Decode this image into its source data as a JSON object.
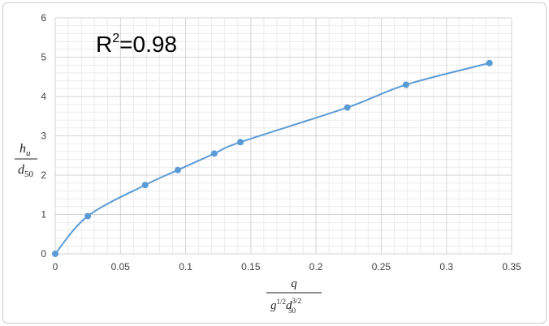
{
  "chart_data": {
    "type": "line",
    "title": "",
    "annotation": {
      "base": "R",
      "sup": "2",
      "rest": "=0.98"
    },
    "xlabel": {
      "num": "q",
      "den_g": "g",
      "den_g_exp": "1/2",
      "den_d": "d",
      "den_d_sub": "50",
      "den_d_exp": "3/2"
    },
    "ylabel": {
      "num": "h",
      "num_sub": "u",
      "den": "d",
      "den_sub": "50"
    },
    "xlim": [
      0,
      0.35
    ],
    "ylim": [
      0,
      6
    ],
    "xticks": [
      "0",
      "0.05",
      "0.1",
      "0.15",
      "0.2",
      "0.25",
      "0.3",
      "0.35"
    ],
    "yticks": [
      "0",
      "1",
      "2",
      "3",
      "4",
      "5",
      "6"
    ],
    "grid": true,
    "color": "#5b9bd5",
    "series": [
      {
        "x": [
          0,
          0.025,
          0.069,
          0.094,
          0.122,
          0.142,
          0.224,
          0.269,
          0.333
        ],
        "y": [
          0,
          0.96,
          1.75,
          2.13,
          2.55,
          2.84,
          3.72,
          4.3,
          4.85
        ]
      }
    ]
  }
}
